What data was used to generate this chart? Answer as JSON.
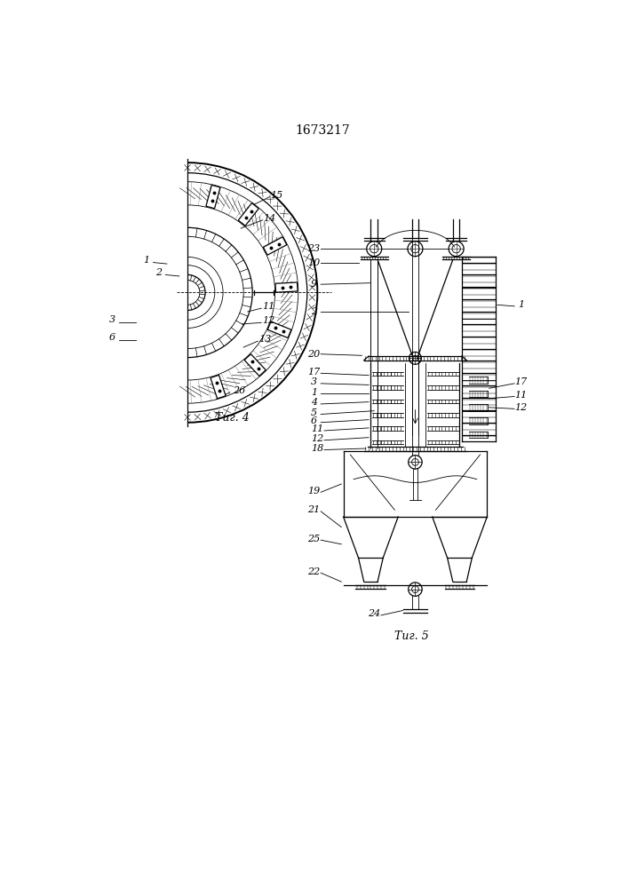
{
  "title": "1673217",
  "fig4_label": "Τиг. 4",
  "fig5_label": "Τиг. 5",
  "bg_color": "#ffffff",
  "line_color": "#000000"
}
